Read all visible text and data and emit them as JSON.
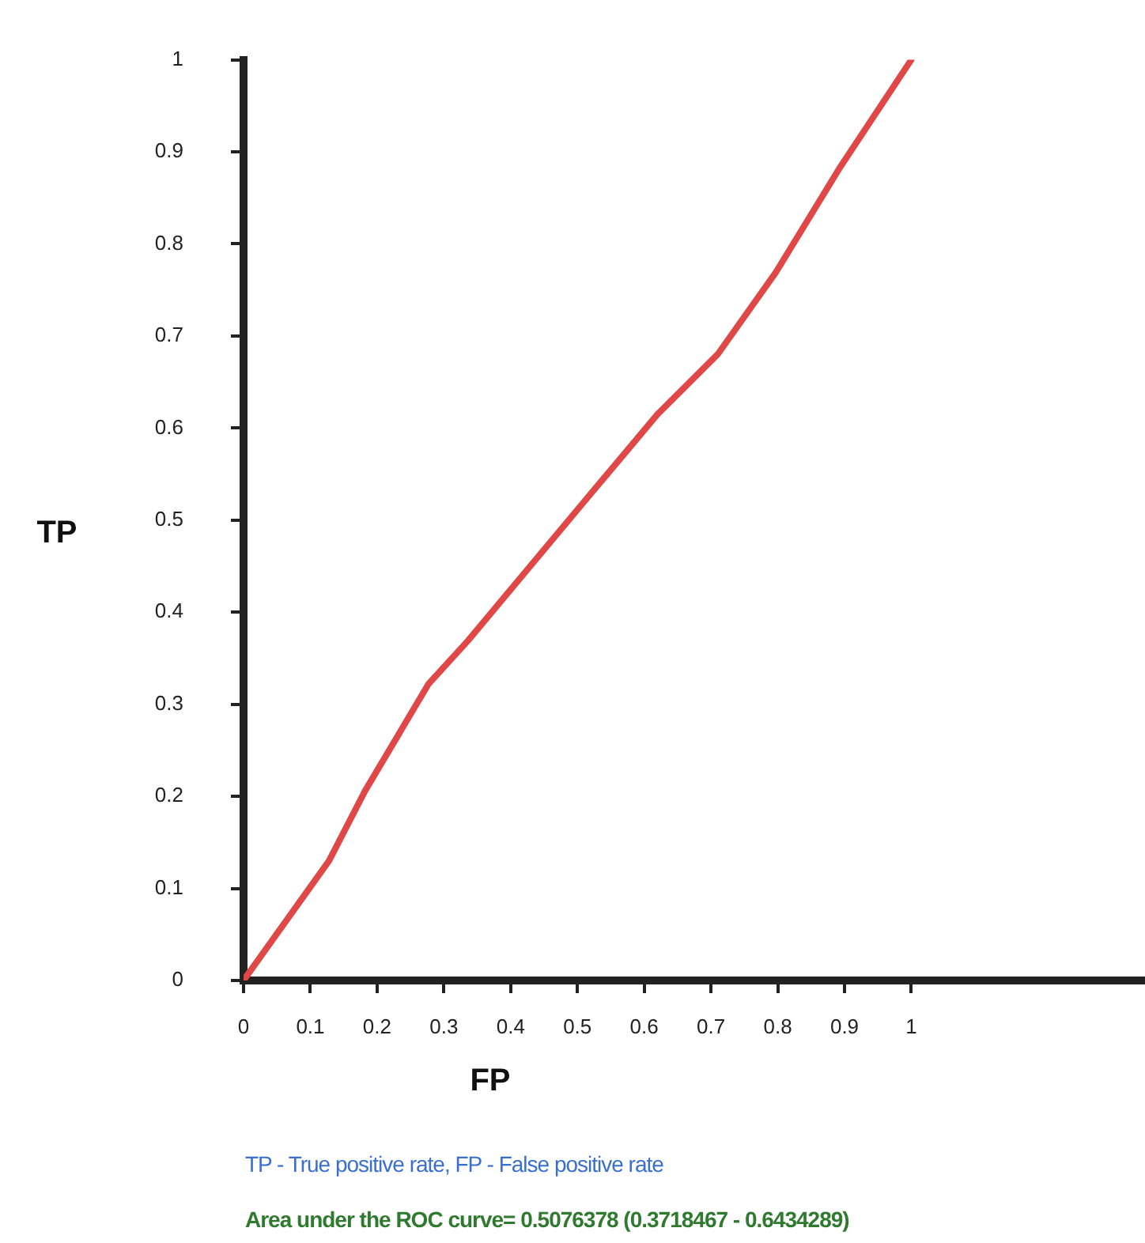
{
  "chart_data": {
    "type": "line",
    "xlabel": "FP",
    "ylabel": "TP",
    "x": [
      0,
      0.128,
      0.182,
      0.277,
      0.336,
      0.51,
      0.62,
      0.71,
      0.797,
      0.894,
      1
    ],
    "series": [
      {
        "color": "#e04848",
        "values": [
          0,
          0.13,
          0.206,
          0.322,
          0.369,
          0.52,
          0.615,
          0.68,
          0.769,
          0.884,
          1
        ]
      }
    ],
    "xlim": [
      0,
      1.35
    ],
    "xticks": [
      0,
      0.1,
      0.2,
      0.3,
      0.4,
      0.5,
      0.6,
      0.7,
      0.8,
      0.9,
      1
    ],
    "ylim": [
      0,
      1
    ],
    "yticks": [
      0,
      0.1,
      0.2,
      0.3,
      0.4,
      0.5,
      0.6,
      0.7,
      0.8,
      0.9,
      1
    ],
    "grid": false,
    "legend": false,
    "marker": "none",
    "line_style": "solid",
    "annotations": [
      "TP - True positive rate, FP - False positive rate",
      "Area under the ROC curve= 0.5076378 (0.3718467 - 0.6434289)"
    ]
  }
}
